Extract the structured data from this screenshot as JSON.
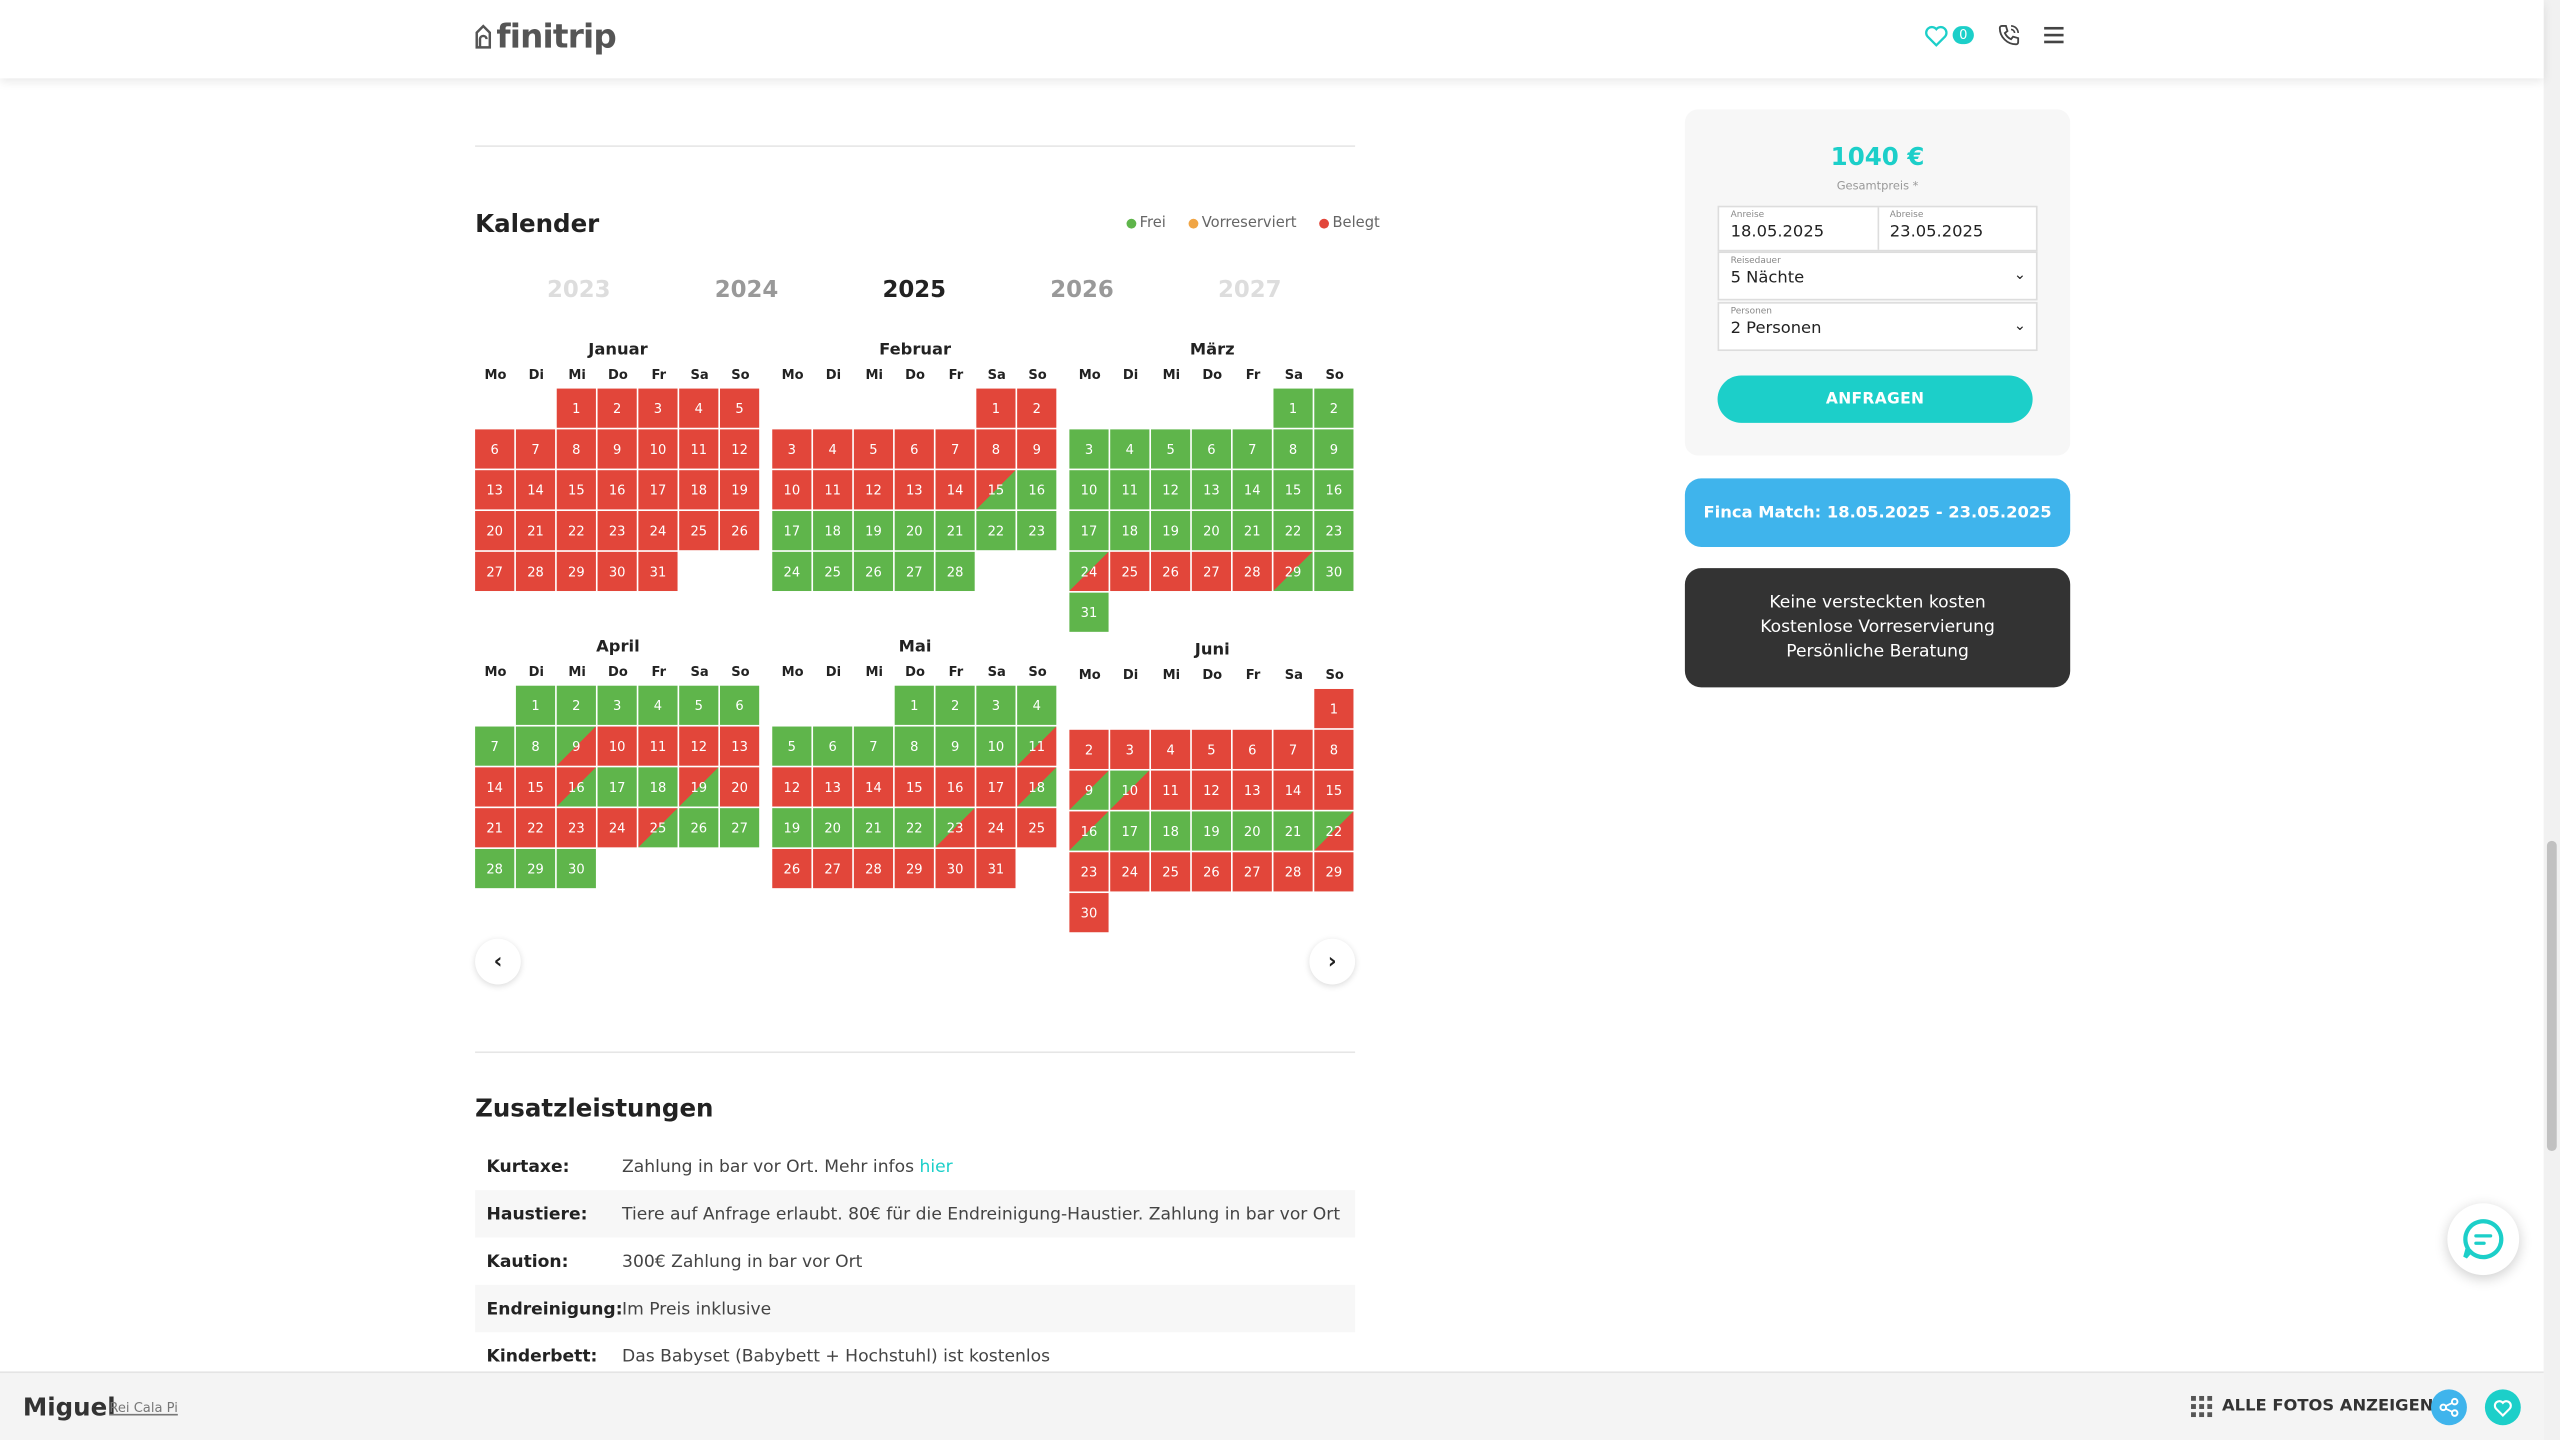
{
  "header": {
    "logo": "finitrip",
    "favorites_count": "0"
  },
  "calendar": {
    "title": "Kalender",
    "legend": [
      {
        "label": "Frei",
        "color": "#5fb54b"
      },
      {
        "label": "Vorreserviert",
        "color": "#f0a545"
      },
      {
        "label": "Belegt",
        "color": "#e2463a"
      }
    ],
    "years": [
      "2023",
      "2024",
      "2025",
      "2026",
      "2027"
    ],
    "active_year": "2025",
    "weekdays": [
      "Mo",
      "Di",
      "Mi",
      "Do",
      "Fr",
      "Sa",
      "So"
    ],
    "status_codes": {
      "g": "Frei",
      "r": "Belegt",
      "rg": "Belegt/Frei",
      "gr": "Frei/Belegt"
    },
    "months": [
      {
        "name": "Januar",
        "offset": 2,
        "statuses": [
          "r",
          "r",
          "r",
          "r",
          "r",
          "r",
          "r",
          "r",
          "r",
          "r",
          "r",
          "r",
          "r",
          "r",
          "r",
          "r",
          "r",
          "r",
          "r",
          "r",
          "r",
          "r",
          "r",
          "r",
          "r",
          "r",
          "r",
          "r",
          "r",
          "r",
          "r"
        ]
      },
      {
        "name": "Februar",
        "offset": 5,
        "statuses": [
          "r",
          "r",
          "r",
          "r",
          "r",
          "r",
          "r",
          "r",
          "r",
          "r",
          "r",
          "r",
          "r",
          "r",
          "rg",
          "g",
          "g",
          "g",
          "g",
          "g",
          "g",
          "g",
          "g",
          "g",
          "g",
          "g",
          "g",
          "g"
        ]
      },
      {
        "name": "März",
        "offset": 5,
        "statuses": [
          "g",
          "g",
          "g",
          "g",
          "g",
          "g",
          "g",
          "g",
          "g",
          "g",
          "g",
          "g",
          "g",
          "g",
          "g",
          "g",
          "g",
          "g",
          "g",
          "g",
          "g",
          "g",
          "g",
          "gr",
          "r",
          "r",
          "r",
          "r",
          "rg",
          "g",
          "g"
        ]
      },
      {
        "name": "April",
        "offset": 1,
        "statuses": [
          "g",
          "g",
          "g",
          "g",
          "g",
          "g",
          "g",
          "g",
          "gr",
          "r",
          "r",
          "r",
          "r",
          "r",
          "r",
          "rg",
          "g",
          "g",
          "rg",
          "r",
          "r",
          "r",
          "r",
          "r",
          "rg",
          "g",
          "g",
          "g",
          "g",
          "g"
        ]
      },
      {
        "name": "Mai",
        "offset": 3,
        "statuses": [
          "g",
          "g",
          "g",
          "g",
          "g",
          "g",
          "g",
          "g",
          "g",
          "g",
          "gr",
          "r",
          "r",
          "r",
          "r",
          "r",
          "r",
          "rg",
          "g",
          "g",
          "g",
          "g",
          "gr",
          "r",
          "r",
          "r",
          "r",
          "r",
          "r",
          "r",
          "r"
        ]
      },
      {
        "name": "Juni",
        "offset": 6,
        "statuses": [
          "r",
          "r",
          "r",
          "r",
          "r",
          "r",
          "r",
          "r",
          "rg",
          "gr",
          "r",
          "r",
          "r",
          "r",
          "r",
          "rg",
          "g",
          "g",
          "g",
          "g",
          "g",
          "gr",
          "r",
          "r",
          "r",
          "r",
          "r",
          "r",
          "r",
          "r"
        ]
      }
    ],
    "prev_label": "‹",
    "next_label": "›"
  },
  "extras": {
    "title": "Zusatzleistungen",
    "rows": [
      {
        "key": "Kurtaxe:",
        "value": "Zahlung in bar vor Ort. Mehr infos ",
        "link": "hier"
      },
      {
        "key": "Haustiere:",
        "value": "Tiere auf Anfrage erlaubt. 80€ für die Endreinigung-Haustier. Zahlung in bar vor Ort",
        "link": ""
      },
      {
        "key": "Kaution:",
        "value": "300€ Zahlung in bar vor Ort",
        "link": ""
      },
      {
        "key": "Endreinigung:",
        "value": "Im Preis inklusive",
        "link": ""
      },
      {
        "key": "Kinderbett:",
        "value": "Das Babyset (Babybett + Hochstuhl) ist kostenlos",
        "link": ""
      }
    ]
  },
  "booking": {
    "price": "1040 €",
    "price_label": "Gesamtpreis *",
    "arrival_label": "Anreise",
    "arrival": "18.05.2025",
    "departure_label": "Abreise",
    "departure": "23.05.2025",
    "duration_label": "Reisedauer",
    "duration": "5 Nächte",
    "persons_label": "Personen",
    "persons": "2 Personen",
    "button": "ANFRAGEN"
  },
  "finca_match": "Finca Match: 18.05.2025 - 23.05.2025",
  "usp": [
    "Keine versteckten kosten",
    "Kostenlose Vorreservierung",
    "Persönliche Beratung"
  ],
  "bottom": {
    "name": "Miguel",
    "subtitle": "Rei Cala Pi",
    "photos": "ALLE FOTOS ANZEIGEN"
  }
}
